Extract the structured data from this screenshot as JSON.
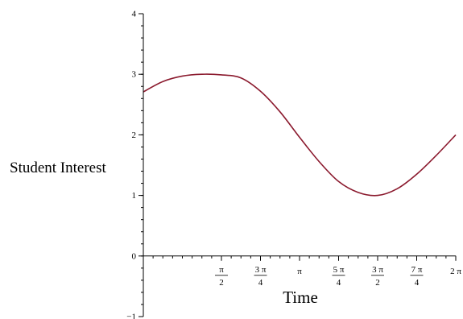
{
  "chart_data": {
    "type": "line",
    "title": "",
    "xlabel": "Time",
    "ylabel": "Student Interest",
    "xlim": [
      0,
      6.2832
    ],
    "ylim": [
      -1,
      4
    ],
    "grid": false,
    "legend": "none",
    "x_ticks": [
      {
        "value": 1.5708,
        "num": "π",
        "den": "2"
      },
      {
        "value": 2.3562,
        "num": "3 π",
        "den": "4"
      },
      {
        "value": 3.1416,
        "label": "π"
      },
      {
        "value": 3.927,
        "num": "5 π",
        "den": "4"
      },
      {
        "value": 4.7124,
        "num": "3 π",
        "den": "2"
      },
      {
        "value": 5.4978,
        "num": "7 π",
        "den": "4"
      },
      {
        "value": 6.2832,
        "label": "2 π"
      }
    ],
    "x_minor_step": 0.19635,
    "y_ticks": [
      {
        "value": -1,
        "label": "−1"
      },
      {
        "value": 0,
        "label": "0"
      },
      {
        "value": 1,
        "label": "1"
      },
      {
        "value": 2,
        "label": "2"
      },
      {
        "value": 3,
        "label": "3"
      },
      {
        "value": 4,
        "label": "4"
      }
    ],
    "y_minor_step": 0.2,
    "series": [
      {
        "color": "#8b1a2e",
        "x": [
          0,
          0.3927,
          0.7854,
          1.1781,
          1.5708,
          1.9635,
          2.3562,
          2.7489,
          3.1416,
          3.5343,
          3.927,
          4.3197,
          4.7124,
          5.1051,
          5.4978,
          5.8905,
          6.2832
        ],
        "y": [
          2.71,
          2.88,
          2.97,
          3.0,
          2.99,
          2.94,
          2.72,
          2.38,
          1.96,
          1.56,
          1.23,
          1.05,
          1.0,
          1.11,
          1.35,
          1.66,
          2.0
        ]
      }
    ]
  }
}
